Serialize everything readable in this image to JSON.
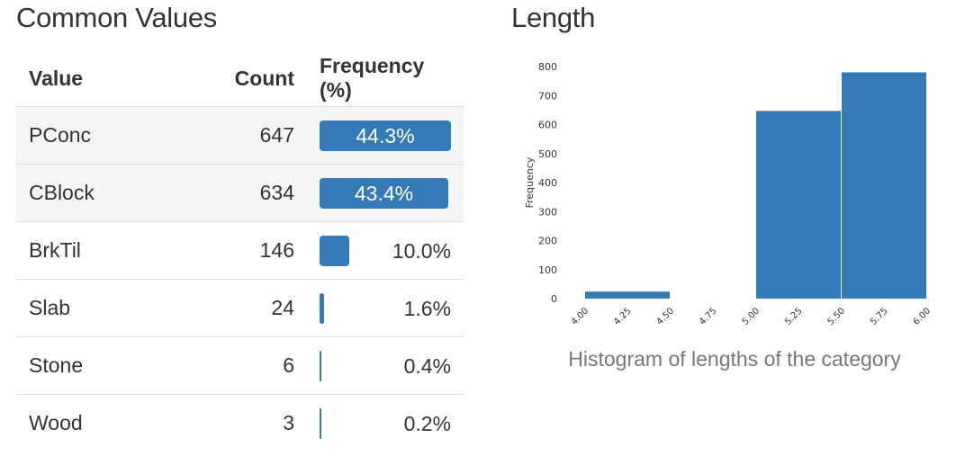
{
  "common_values": {
    "title": "Common Values",
    "headers": {
      "value": "Value",
      "count": "Count",
      "frequency": "Frequency (%)"
    },
    "rows": [
      {
        "value": "PConc",
        "count": "647",
        "frequency": "44.3%",
        "fraction": 0.443
      },
      {
        "value": "CBlock",
        "count": "634",
        "frequency": "43.4%",
        "fraction": 0.434
      },
      {
        "value": "BrkTil",
        "count": "146",
        "frequency": "10.0%",
        "fraction": 0.1
      },
      {
        "value": "Slab",
        "count": "24",
        "frequency": "1.6%",
        "fraction": 0.016
      },
      {
        "value": "Stone",
        "count": "6",
        "frequency": "0.4%",
        "fraction": 0.004
      },
      {
        "value": "Wood",
        "count": "3",
        "frequency": "0.2%",
        "fraction": 0.002
      }
    ],
    "bar_color": "#337ab7"
  },
  "length": {
    "title": "Length",
    "caption": "Histogram of lengths of the category"
  },
  "chart_data": {
    "type": "bar",
    "title": "",
    "xlabel": "",
    "ylabel": "Frequency",
    "bins": [
      {
        "start": 4.0,
        "end": 4.5,
        "value": 24
      },
      {
        "start": 4.5,
        "end": 5.0,
        "value": 0
      },
      {
        "start": 5.0,
        "end": 5.5,
        "value": 647
      },
      {
        "start": 5.5,
        "end": 6.0,
        "value": 780
      }
    ],
    "xticks": [
      "4.00",
      "4.25",
      "4.50",
      "4.75",
      "5.00",
      "5.25",
      "5.50",
      "5.75",
      "6.00"
    ],
    "yticks": [
      "0",
      "100",
      "200",
      "300",
      "400",
      "500",
      "600",
      "700",
      "800"
    ],
    "xlim": [
      4.0,
      6.0
    ],
    "ylim": [
      0,
      800
    ],
    "grid": false,
    "color": "#337ab7"
  }
}
